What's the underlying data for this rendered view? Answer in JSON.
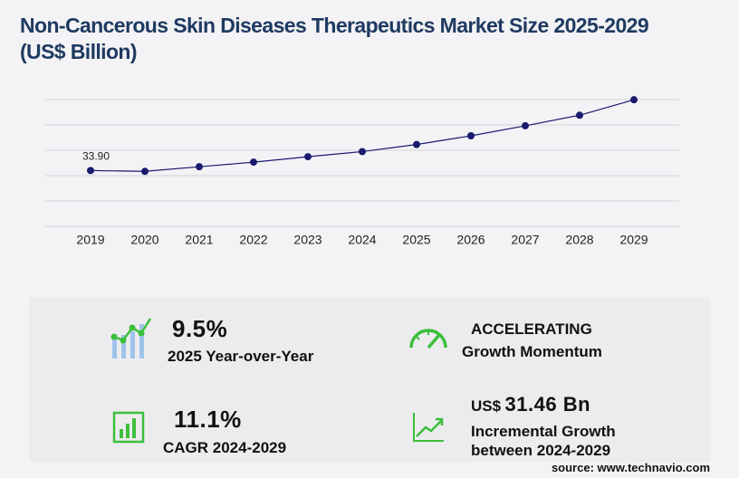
{
  "chart_data": {
    "type": "line",
    "title": "Non-Cancerous Skin Diseases Therapeutics Market Size 2025-2029 (US$ Billion)",
    "categories": [
      "2019",
      "2020",
      "2021",
      "2022",
      "2023",
      "2024",
      "2025",
      "2026",
      "2027",
      "2028",
      "2029"
    ],
    "values": [
      33.9,
      33.4,
      36.2,
      39.0,
      42.3,
      45.4,
      49.7,
      55.0,
      61.1,
      67.5,
      76.9
    ],
    "value_labels": [
      "33.90",
      null,
      null,
      null,
      null,
      null,
      null,
      null,
      null,
      null,
      null
    ],
    "color": "#1a1a6e",
    "ylim": [
      0,
      77
    ],
    "yticks": [
      0,
      15.4,
      30.8,
      46.2,
      61.6,
      77
    ],
    "grid": true
  },
  "stats": [
    {
      "value": "9.5%",
      "label": "2025 Year-over-Year"
    },
    {
      "value": "ACCELERATING",
      "label": "Growth Momentum"
    },
    {
      "value": "11.1%",
      "label": "CAGR 2024-2029"
    },
    {
      "prefix": "US$",
      "value": "31.46 Bn",
      "label": "Incremental Growth between 2024-2029"
    }
  ],
  "source": "source: www.technavio.com"
}
